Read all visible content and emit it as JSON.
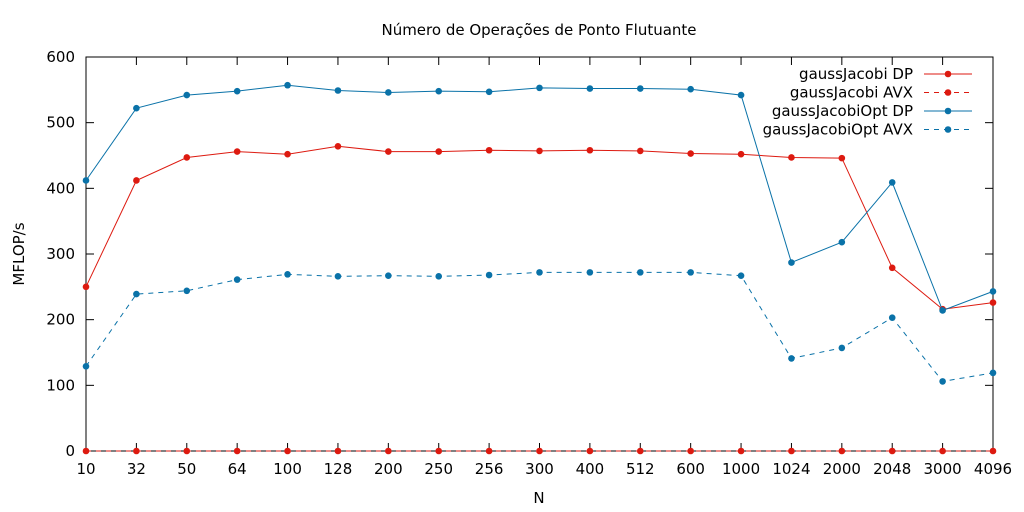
{
  "chart_data": {
    "type": "line",
    "title": "Número de Operações de Ponto Flutuante",
    "xlabel": "N",
    "ylabel": "MFLOP/s",
    "ylim": [
      0,
      600
    ],
    "yticks": [
      0,
      100,
      200,
      300,
      400,
      500,
      600
    ],
    "categories": [
      "10",
      "32",
      "50",
      "64",
      "100",
      "128",
      "200",
      "250",
      "256",
      "300",
      "400",
      "512",
      "600",
      "1000",
      "1024",
      "2000",
      "2048",
      "3000",
      "4096"
    ],
    "grid": false,
    "legend_position": "top-right",
    "series": [
      {
        "name": "gaussJacobi DP",
        "color": "#dd1a10",
        "dash": "solid",
        "values": [
          250,
          412,
          447,
          456,
          452,
          464,
          456,
          456,
          458,
          457,
          458,
          457,
          453,
          452,
          447,
          446,
          279,
          216,
          226
        ]
      },
      {
        "name": "gaussJacobi AVX",
        "color": "#dd1a10",
        "dash": "dashed",
        "values": [
          0,
          0,
          0,
          0,
          0,
          0,
          0,
          0,
          0,
          0,
          0,
          0,
          0,
          0,
          0,
          0,
          0,
          0,
          0
        ]
      },
      {
        "name": "gaussJacobiOpt DP",
        "color": "#0a72a8",
        "dash": "solid",
        "values": [
          412,
          522,
          542,
          548,
          557,
          549,
          546,
          548,
          547,
          553,
          552,
          552,
          551,
          542,
          287,
          318,
          409,
          214,
          243
        ]
      },
      {
        "name": "gaussJacobiOpt AVX",
        "color": "#0a72a8",
        "dash": "dashed",
        "values": [
          129,
          239,
          244,
          261,
          269,
          266,
          267,
          266,
          268,
          272,
          272,
          272,
          272,
          267,
          141,
          157,
          203,
          106,
          119
        ]
      }
    ]
  }
}
